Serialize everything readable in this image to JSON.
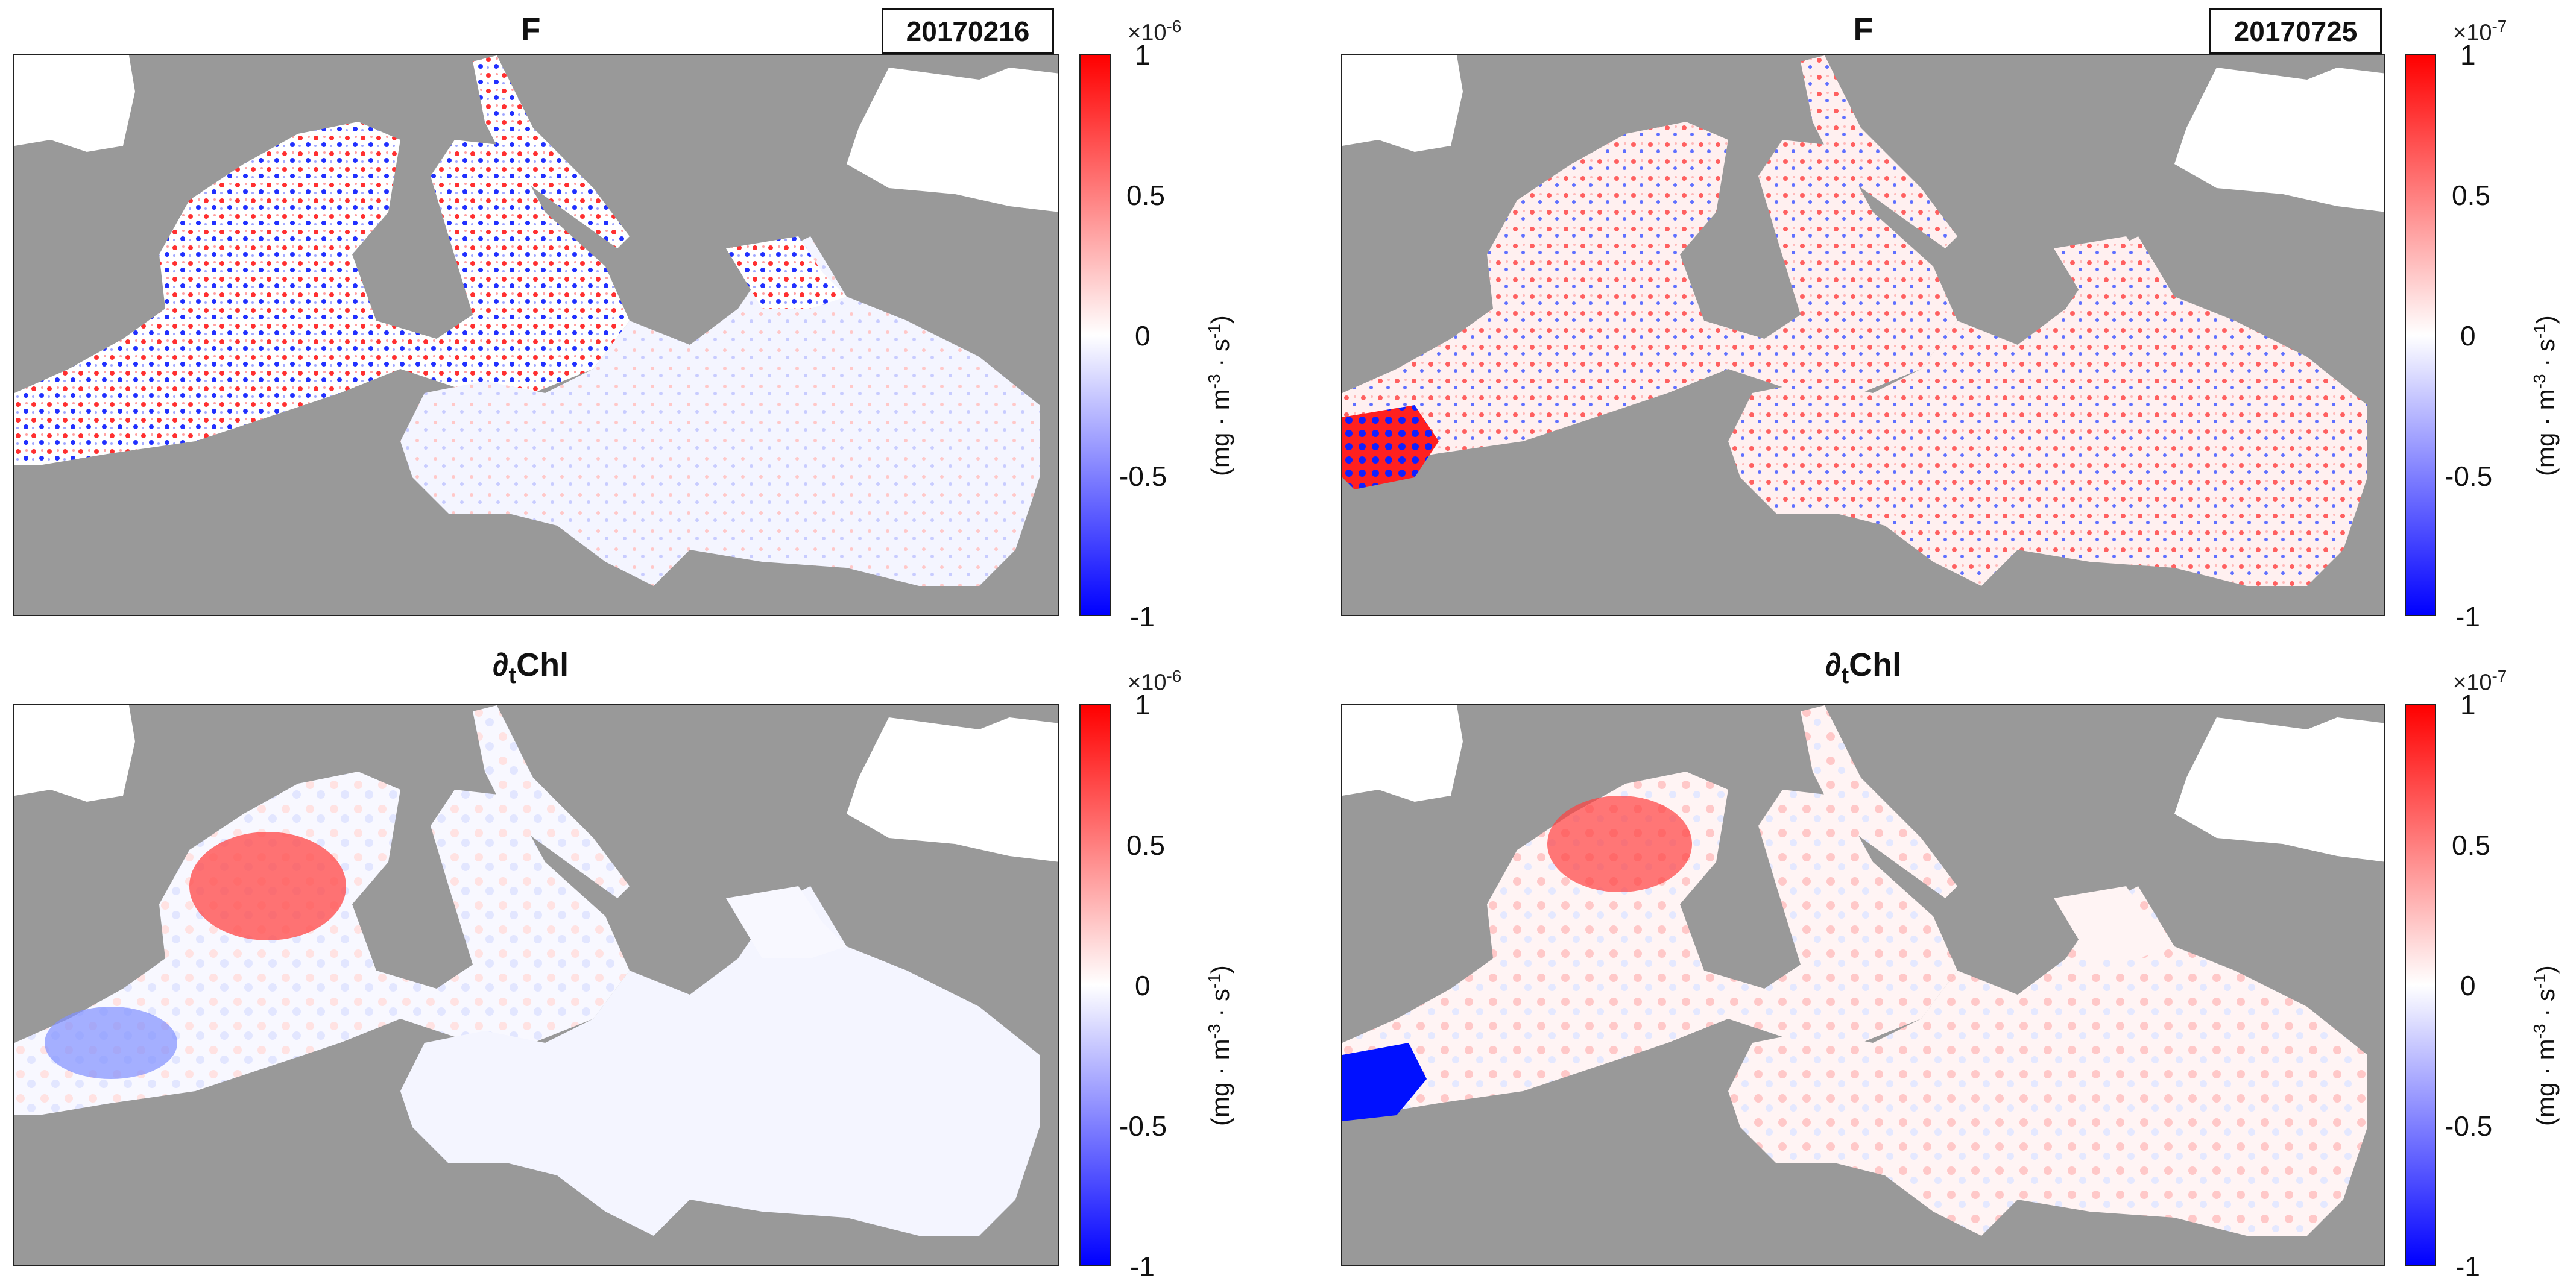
{
  "panels": [
    {
      "title": "F",
      "date": "20170216",
      "colorbar": {
        "exponent_base": "×10",
        "exponent_power": "-6",
        "ticks": [
          "1",
          "0.5",
          "0",
          "-0.5",
          "-1"
        ],
        "unit_prefix": "(mg · m",
        "unit_exp1": "-3",
        "unit_mid": " · s",
        "unit_exp2": "-1",
        "unit_suffix": ")"
      }
    },
    {
      "title": "F",
      "date": "20170725",
      "colorbar": {
        "exponent_base": "×10",
        "exponent_power": "-7",
        "ticks": [
          "1",
          "0.5",
          "0",
          "-0.5",
          "-1"
        ],
        "unit_prefix": "(mg · m",
        "unit_exp1": "-3",
        "unit_mid": " · s",
        "unit_exp2": "-1",
        "unit_suffix": ")"
      }
    },
    {
      "title_prefix": "∂",
      "title_sub": "t",
      "title_suffix": "Chl",
      "colorbar": {
        "exponent_base": "×10",
        "exponent_power": "-6",
        "ticks": [
          "1",
          "0.5",
          "0",
          "-0.5",
          "-1"
        ],
        "unit_prefix": "(mg · m",
        "unit_exp1": "-3",
        "unit_mid": " · s",
        "unit_exp2": "-1",
        "unit_suffix": ")"
      }
    },
    {
      "title_prefix": "∂",
      "title_sub": "t",
      "title_suffix": "Chl",
      "colorbar": {
        "exponent_base": "×10",
        "exponent_power": "-7",
        "ticks": [
          "1",
          "0.5",
          "0",
          "-0.5",
          "-1"
        ],
        "unit_prefix": "(mg · m",
        "unit_exp1": "-3",
        "unit_mid": " · s",
        "unit_exp2": "-1",
        "unit_suffix": ")"
      }
    }
  ],
  "colors": {
    "land": "#999999",
    "sea_base": "#ffffff",
    "positive": "#ff0000",
    "negative": "#0000ff",
    "unmapped": "#ffffff"
  }
}
